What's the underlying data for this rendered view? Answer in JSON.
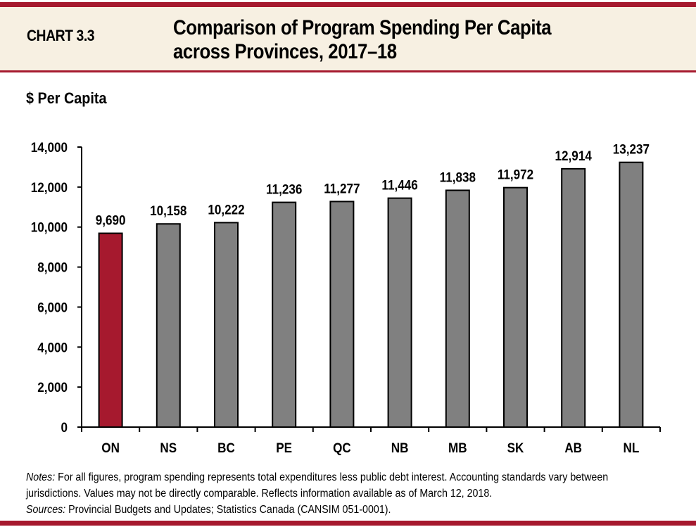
{
  "header": {
    "chart_number": "CHART 3.3",
    "title_line1": "Comparison of Program Spending Per Capita",
    "title_line2": "across Provinces, 2017–18"
  },
  "colors": {
    "brand_red": "#A6192E",
    "header_bg": "#F7F0E2",
    "highlight_bar": "#A6192E",
    "default_bar": "#808080"
  },
  "chart_data": {
    "type": "bar",
    "title": "Comparison of Program Spending Per Capita across Provinces, 2017–18",
    "xlabel": "",
    "ylabel": "$ Per Capita",
    "ylim": [
      0,
      14000
    ],
    "yticks": [
      0,
      2000,
      4000,
      6000,
      8000,
      10000,
      12000,
      14000
    ],
    "ytick_labels": [
      "0",
      "2,000",
      "4,000",
      "6,000",
      "8,000",
      "10,000",
      "12,000",
      "14,000"
    ],
    "grid": false,
    "legend": "none",
    "categories": [
      "ON",
      "NS",
      "BC",
      "PE",
      "QC",
      "NB",
      "MB",
      "SK",
      "AB",
      "NL"
    ],
    "values": [
      9690,
      10158,
      10222,
      11236,
      11277,
      11446,
      11838,
      11972,
      12914,
      13237
    ],
    "data_labels": [
      "9,690",
      "10,158",
      "10,222",
      "11,236",
      "11,277",
      "11,446",
      "11,838",
      "11,972",
      "12,914",
      "13,237"
    ],
    "highlight_category": "ON"
  },
  "notes": {
    "notes_label": "Notes:",
    "notes_line1": " For all figures, program spending represents total expenditures less public debt interest. Accounting standards vary between",
    "notes_line2": "jurisdictions. Values may not be directly comparable. Reflects information available as of March 12, 2018.",
    "sources_label": "Sources:",
    "sources_text": " Provincial Budgets and Updates; Statistics  Canada (CANSIM 051-0001)."
  }
}
